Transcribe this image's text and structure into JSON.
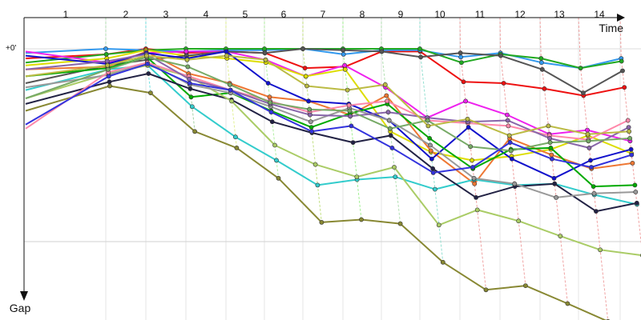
{
  "chart_data": {
    "type": "line",
    "x_axis_label": "Time",
    "y_axis_label": "Gap",
    "zero_label": "+0'",
    "lap_labels": [
      "1",
      "2",
      "3",
      "4",
      "5",
      "6",
      "7",
      "8",
      "9",
      "10",
      "11",
      "12",
      "13",
      "14"
    ],
    "laps": [
      0,
      1,
      2,
      3,
      4,
      5,
      6,
      7,
      8,
      9,
      10,
      11,
      12,
      13,
      14
    ],
    "y_range": [
      0,
      140
    ],
    "grid": true,
    "legend": "none",
    "series": [
      {
        "color": "#ee1111",
        "gaps": [
          7,
          4,
          0,
          3,
          2,
          3,
          14,
          13,
          2,
          2,
          24,
          25,
          29,
          34,
          28
        ]
      },
      {
        "color": "#3399ee",
        "gaps": [
          3,
          0,
          1,
          2,
          1,
          1,
          0,
          4,
          1,
          1,
          6,
          3,
          10,
          14,
          7
        ]
      },
      {
        "color": "#22aa22",
        "gaps": [
          10,
          4,
          1,
          0,
          0,
          0,
          0,
          0,
          0,
          0,
          10,
          4,
          7,
          14,
          9
        ]
      },
      {
        "color": "#ee22ee",
        "gaps": [
          2,
          10,
          3,
          2,
          2,
          8,
          20,
          12,
          28,
          50,
          38,
          48,
          62,
          59,
          67
        ]
      },
      {
        "color": "#dddd00",
        "gaps": [
          12,
          7,
          1,
          5,
          7,
          10,
          20,
          15,
          60,
          75,
          81,
          78,
          73,
          63,
          76
        ]
      },
      {
        "color": "#555555",
        "gaps": [
          25,
          12,
          8,
          5,
          2,
          3,
          0,
          1,
          2,
          6,
          3,
          5,
          15,
          32,
          16
        ]
      },
      {
        "color": "#ee7733",
        "gaps": [
          15,
          13,
          2,
          18,
          25,
          35,
          38,
          48,
          34,
          74,
          98,
          65,
          77,
          87,
          83
        ]
      },
      {
        "color": "#1111cc",
        "gaps": [
          5,
          11,
          3,
          7,
          2,
          25,
          38,
          40,
          52,
          80,
          57,
          80,
          94,
          81,
          73
        ]
      },
      {
        "color": "#00aa00",
        "gaps": [
          20,
          14,
          6,
          35,
          32,
          45,
          57,
          47,
          40,
          65,
          87,
          73,
          72,
          100,
          99
        ]
      },
      {
        "color": "#33cccc",
        "gaps": [
          30,
          15,
          12,
          42,
          64,
          81,
          99,
          95,
          93,
          102,
          95,
          99,
          98,
          106,
          113
        ]
      },
      {
        "color": "#222244",
        "gaps": [
          40,
          24,
          18,
          29,
          37,
          53,
          61,
          68,
          63,
          87,
          108,
          100,
          98,
          118,
          112
        ]
      },
      {
        "color": "#aacc66",
        "gaps": [
          36,
          18,
          12,
          20,
          38,
          70,
          84,
          93,
          86,
          128,
          117,
          125,
          136,
          146,
          150
        ]
      },
      {
        "color": "#888833",
        "gaps": [
          45,
          27,
          32,
          60,
          72,
          94,
          126,
          124,
          127,
          155,
          175,
          172,
          185,
          198,
          203
        ]
      },
      {
        "color": "#999999",
        "gaps": [
          28,
          19,
          10,
          26,
          32,
          42,
          53,
          43,
          52,
          70,
          94,
          98,
          108,
          105,
          104
        ]
      },
      {
        "color": "#ff88aa",
        "gaps": [
          58,
          17,
          10,
          20,
          30,
          38,
          46,
          41,
          38,
          52,
          54,
          56,
          63,
          66,
          52
        ]
      },
      {
        "color": "#8866aa",
        "gaps": [
          15,
          9,
          4,
          22,
          30,
          40,
          48,
          49,
          46,
          50,
          53,
          52,
          65,
          72,
          57
        ]
      },
      {
        "color": "#77aa66",
        "gaps": [
          36,
          15,
          6,
          13,
          26,
          39,
          44,
          45,
          58,
          52,
          71,
          74,
          68,
          67,
          65
        ]
      },
      {
        "color": "#3333dd",
        "gaps": [
          55,
          20,
          11,
          25,
          30,
          46,
          60,
          56,
          72,
          90,
          86,
          68,
          80,
          86,
          77
        ]
      },
      {
        "color": "#bbbb44",
        "gaps": [
          20,
          12,
          5,
          8,
          5,
          8,
          27,
          30,
          26,
          56,
          51,
          63,
          56,
          62,
          60
        ]
      }
    ]
  }
}
